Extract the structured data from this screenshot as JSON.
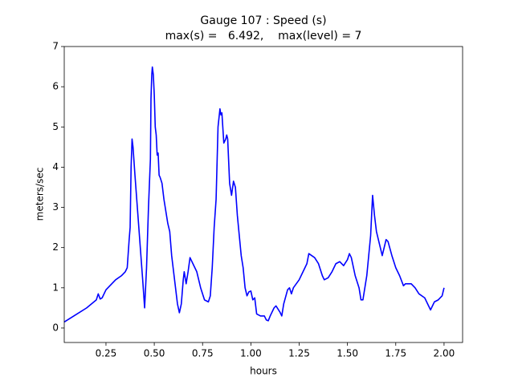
{
  "chart_data": {
    "type": "line",
    "title": "Gauge 107 : Speed (s)",
    "subtitle": "max(s) =   6.492,    max(level) = 7",
    "xlabel": "hours",
    "ylabel": "meters/sec",
    "xlim": [
      0.034,
      2.096
    ],
    "ylim": [
      -0.36,
      7
    ],
    "xticks": [
      0.25,
      {
        "value": 0.5,
        "label": "0.50"
      },
      0.75,
      {
        "value": 1.0,
        "label": "1.00"
      },
      1.25,
      {
        "value": 1.5,
        "label": "1.50"
      },
      1.75,
      {
        "value": 2.0,
        "label": "2.00"
      }
    ],
    "yticks": [
      0,
      1,
      2,
      3,
      4,
      5,
      6,
      7
    ],
    "series": [
      {
        "color": "#0000ff",
        "x": [
          0.034,
          0.1,
          0.15,
          0.2,
          0.21,
          0.22,
          0.23,
          0.25,
          0.28,
          0.3,
          0.33,
          0.35,
          0.36,
          0.37,
          0.375,
          0.38,
          0.385,
          0.39,
          0.4,
          0.42,
          0.44,
          0.45,
          0.46,
          0.47,
          0.48,
          0.483,
          0.487,
          0.49,
          0.495,
          0.5,
          0.505,
          0.51,
          0.515,
          0.52,
          0.525,
          0.53,
          0.54,
          0.55,
          0.57,
          0.58,
          0.59,
          0.6,
          0.62,
          0.63,
          0.64,
          0.65,
          0.655,
          0.665,
          0.675,
          0.685,
          0.7,
          0.72,
          0.74,
          0.76,
          0.78,
          0.79,
          0.8,
          0.81,
          0.82,
          0.83,
          0.84,
          0.845,
          0.85,
          0.86,
          0.87,
          0.875,
          0.88,
          0.89,
          0.9,
          0.91,
          0.92,
          0.93,
          0.95,
          0.96,
          0.97,
          0.98,
          0.99,
          1.0,
          1.01,
          1.02,
          1.03,
          1.05,
          1.07,
          1.08,
          1.09,
          1.1,
          1.12,
          1.13,
          1.15,
          1.16,
          1.17,
          1.19,
          1.2,
          1.21,
          1.22,
          1.25,
          1.27,
          1.29,
          1.3,
          1.33,
          1.35,
          1.37,
          1.38,
          1.4,
          1.42,
          1.44,
          1.46,
          1.48,
          1.5,
          1.51,
          1.52,
          1.54,
          1.56,
          1.57,
          1.58,
          1.6,
          1.62,
          1.63,
          1.64,
          1.65,
          1.66,
          1.68,
          1.7,
          1.71,
          1.73,
          1.75,
          1.77,
          1.79,
          1.8,
          1.83,
          1.85,
          1.87,
          1.9,
          1.92,
          1.93,
          1.95,
          1.97,
          1.99,
          2.0
        ],
        "values": [
          0.15,
          0.35,
          0.5,
          0.7,
          0.85,
          0.72,
          0.75,
          0.95,
          1.1,
          1.2,
          1.3,
          1.4,
          1.5,
          2.2,
          2.5,
          4.0,
          4.7,
          4.5,
          3.8,
          2.5,
          1.2,
          0.5,
          1.5,
          3.0,
          4.2,
          5.7,
          6.3,
          6.49,
          6.3,
          5.8,
          5.0,
          4.8,
          4.3,
          4.35,
          3.8,
          3.75,
          3.6,
          3.2,
          2.6,
          2.4,
          1.8,
          1.4,
          0.6,
          0.38,
          0.6,
          1.2,
          1.4,
          1.1,
          1.4,
          1.75,
          1.6,
          1.4,
          1.0,
          0.7,
          0.65,
          0.8,
          1.5,
          2.5,
          3.2,
          5.0,
          5.45,
          5.3,
          5.35,
          4.6,
          4.7,
          4.8,
          4.7,
          3.6,
          3.3,
          3.65,
          3.5,
          2.8,
          1.8,
          1.5,
          1.0,
          0.8,
          0.9,
          0.92,
          0.7,
          0.75,
          0.35,
          0.3,
          0.3,
          0.2,
          0.18,
          0.3,
          0.5,
          0.55,
          0.4,
          0.3,
          0.6,
          0.95,
          1.0,
          0.85,
          1.0,
          1.2,
          1.4,
          1.6,
          1.85,
          1.75,
          1.6,
          1.3,
          1.2,
          1.25,
          1.4,
          1.6,
          1.65,
          1.55,
          1.7,
          1.85,
          1.75,
          1.3,
          1.0,
          0.7,
          0.7,
          1.3,
          2.3,
          3.3,
          2.8,
          2.4,
          2.2,
          1.8,
          2.2,
          2.15,
          1.8,
          1.5,
          1.3,
          1.05,
          1.1,
          1.1,
          1.0,
          0.85,
          0.75,
          0.55,
          0.45,
          0.65,
          0.7,
          0.8,
          1.0
        ]
      }
    ]
  }
}
